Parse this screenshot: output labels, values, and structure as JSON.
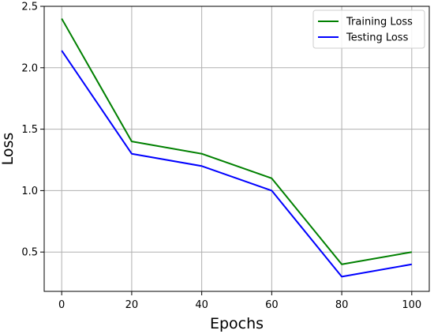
{
  "chart_data": {
    "type": "line",
    "title": "",
    "xlabel": "Epochs",
    "ylabel": "Loss",
    "x": [
      0,
      20,
      40,
      60,
      80,
      100
    ],
    "xlim": [
      -5,
      105
    ],
    "ylim": [
      0.18,
      2.5
    ],
    "xticks": [
      0,
      20,
      40,
      60,
      80,
      100
    ],
    "yticks": [
      0.5,
      1.0,
      1.5,
      2.0,
      2.5
    ],
    "xtick_labels": [
      "0",
      "20",
      "40",
      "60",
      "80",
      "100"
    ],
    "ytick_labels": [
      "0.5",
      "1.0",
      "1.5",
      "2.0",
      "2.5"
    ],
    "grid": true,
    "legend_position": "top-right",
    "series": [
      {
        "name": "Training Loss",
        "color": "#008000",
        "values": [
          2.4,
          1.4,
          1.3,
          1.1,
          0.4,
          0.5
        ]
      },
      {
        "name": "Testing Loss",
        "color": "#0000ff",
        "values": [
          2.14,
          1.3,
          1.2,
          1.0,
          0.3,
          0.4
        ]
      }
    ]
  }
}
